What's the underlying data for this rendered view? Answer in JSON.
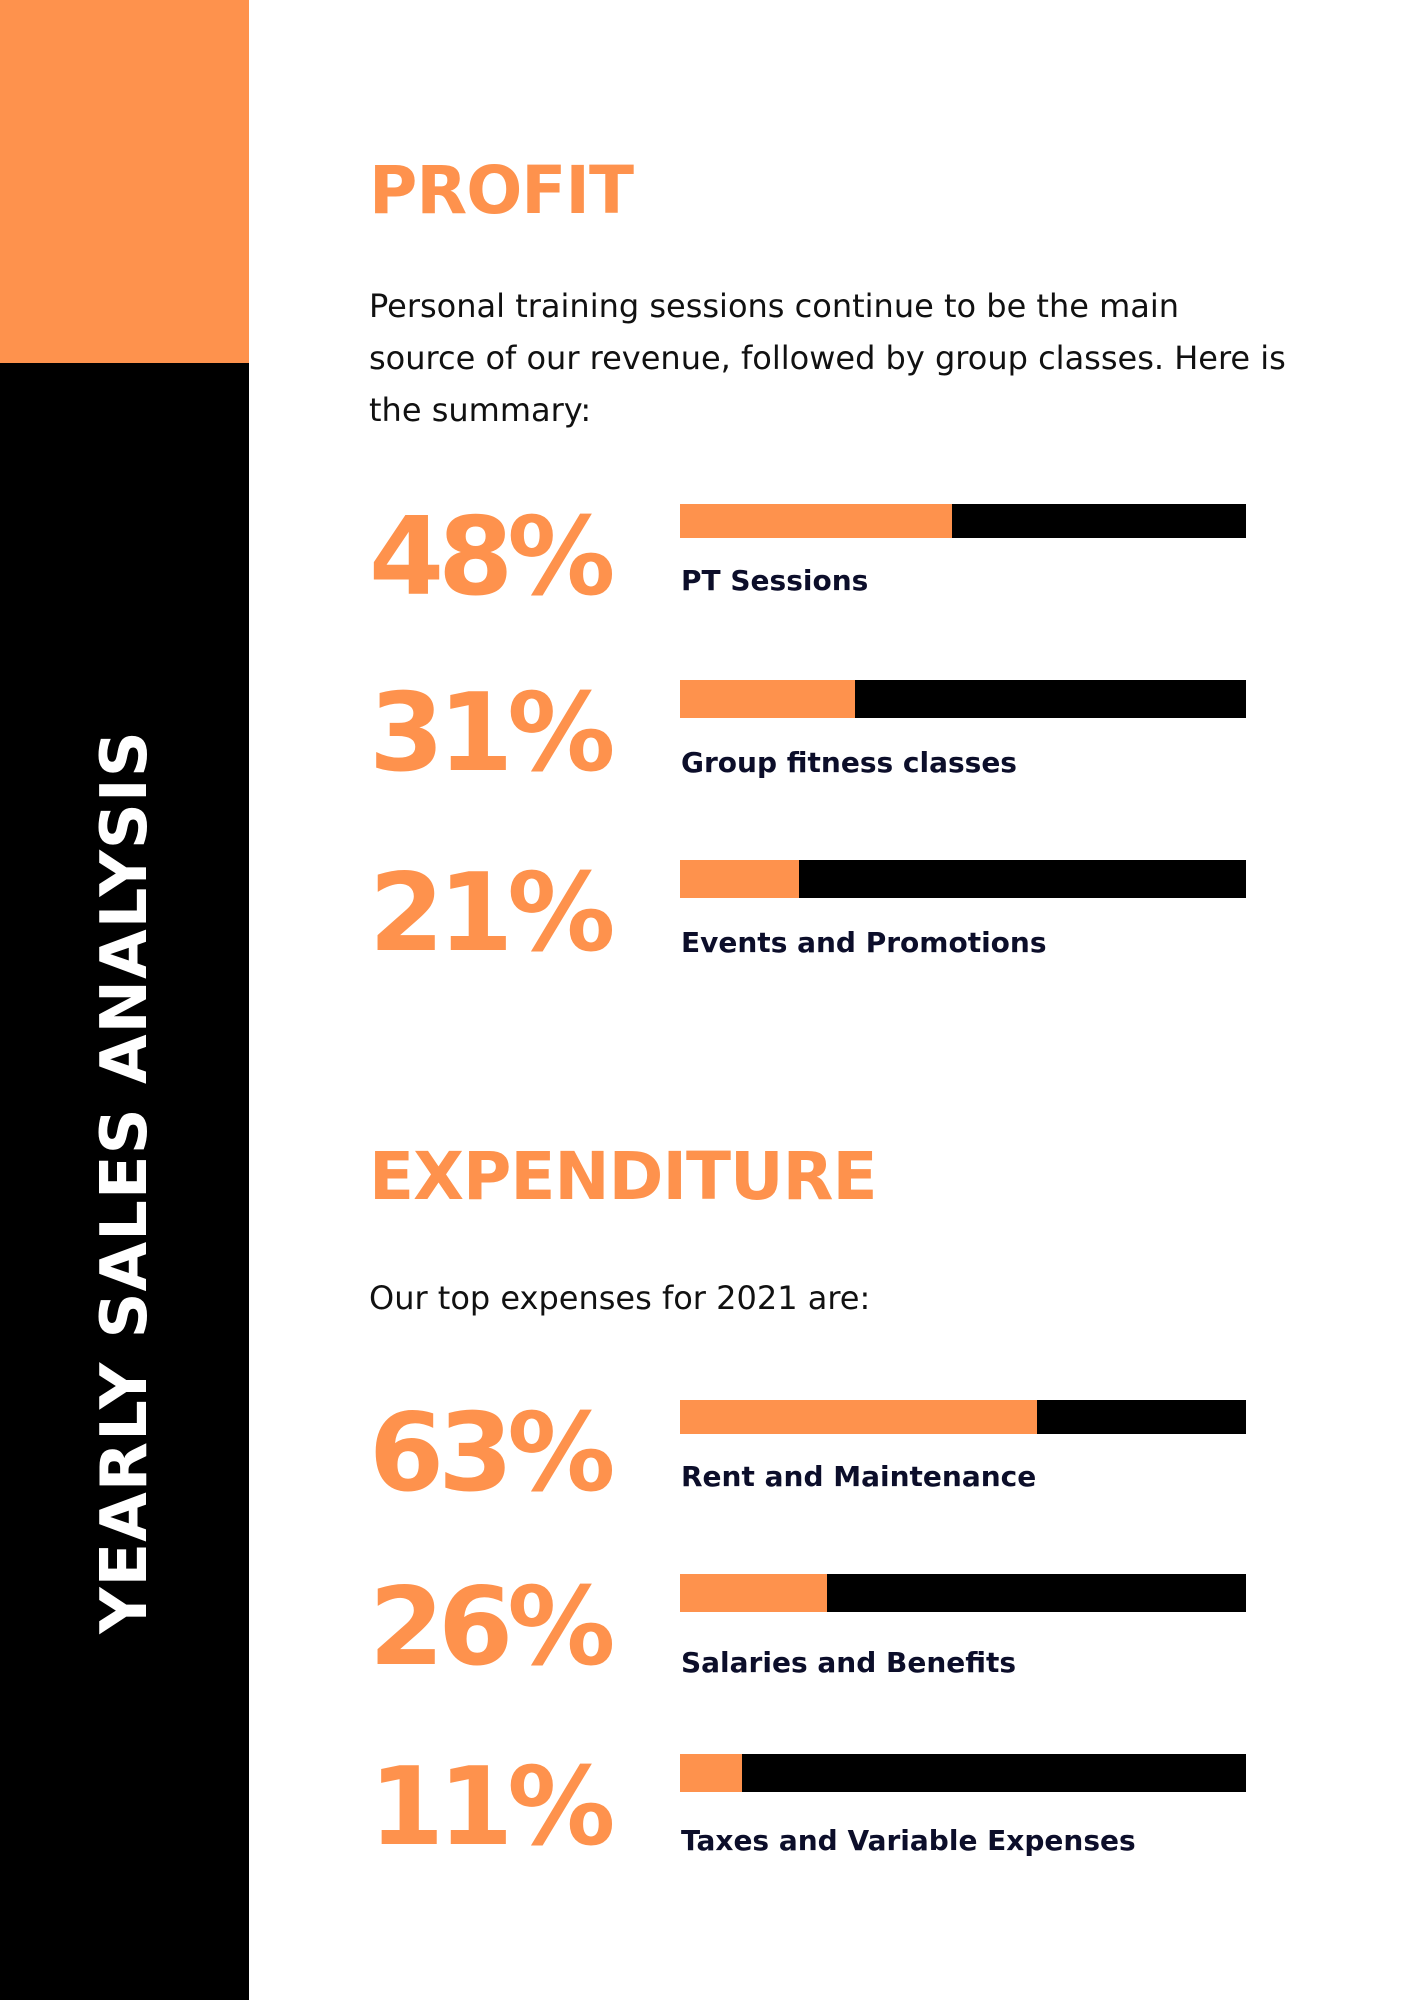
{
  "sidebar": {
    "title": "YEARLY SALES ANALYSIS"
  },
  "profit": {
    "heading": "PROFIT",
    "intro": "Personal training sessions continue to be the main source of our revenue, followed by group classes. Here is the summary:",
    "items": [
      {
        "value_text": "48%",
        "percent": 48,
        "label": "PT Sessions"
      },
      {
        "value_text": "31%",
        "percent": 31,
        "label": "Group fitness classes"
      },
      {
        "value_text": "21%",
        "percent": 21,
        "label": "Events and Promotions"
      }
    ]
  },
  "expenditure": {
    "heading": "EXPENDITURE",
    "intro": "Our top expenses for 2021 are:",
    "items": [
      {
        "value_text": "63%",
        "percent": 63,
        "label": "Rent and Maintenance"
      },
      {
        "value_text": "26%",
        "percent": 26,
        "label": "Salaries and Benefits"
      },
      {
        "value_text": "11%",
        "percent": 11,
        "label": "Taxes and Variable Expenses"
      }
    ]
  },
  "colors": {
    "accent": "#fe924d",
    "dark": "#000000",
    "label_text": "#0c0e2a"
  }
}
